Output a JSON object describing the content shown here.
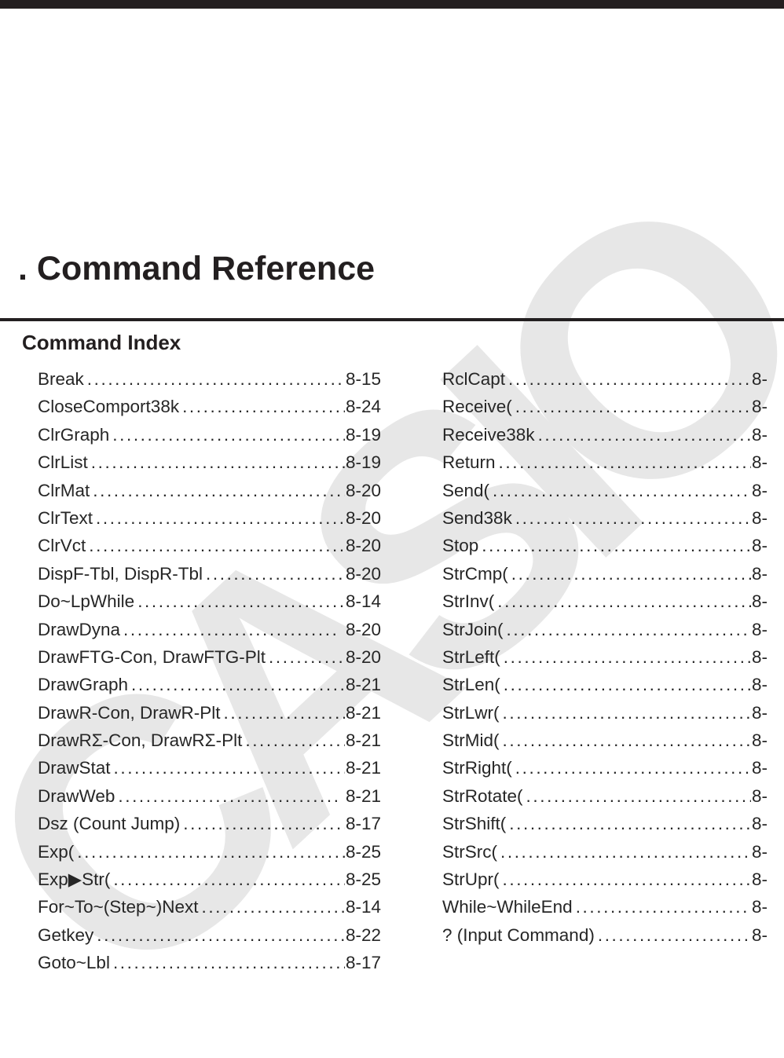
{
  "page": {
    "title": ". Command Reference",
    "section_heading": "Command Index"
  },
  "watermark": {
    "text": "CASIO",
    "color": "#e7e7e7"
  },
  "colors": {
    "top_bar": "#231f20",
    "rule": "#231f20",
    "title_text": "#231f20",
    "entry_text": "#262626"
  },
  "index": {
    "left_column": [
      {
        "name": "Break",
        "page": "8-15"
      },
      {
        "name": "CloseComport38k",
        "page": "8-24"
      },
      {
        "name": "ClrGraph",
        "page": "8-19"
      },
      {
        "name": "ClrList",
        "page": "8-19"
      },
      {
        "name": "ClrMat",
        "page": "8-20"
      },
      {
        "name": "ClrText",
        "page": "8-20"
      },
      {
        "name": "ClrVct",
        "page": "8-20"
      },
      {
        "name": "DispF-Tbl, DispR-Tbl",
        "page": "8-20"
      },
      {
        "name": "Do~LpWhile",
        "page": "8-14"
      },
      {
        "name": "DrawDyna",
        "page": " 8-20"
      },
      {
        "name": "DrawFTG-Con, DrawFTG-Plt",
        "page": "8-20"
      },
      {
        "name": "DrawGraph",
        "page": "8-21"
      },
      {
        "name": "DrawR-Con, DrawR-Plt",
        "page": "8-21"
      },
      {
        "name": "DrawRΣ-Con, DrawRΣ-Plt",
        "page": "8-21"
      },
      {
        "name": "DrawStat",
        "page": "8-21"
      },
      {
        "name": "DrawWeb",
        "page": " 8-21"
      },
      {
        "name": "Dsz (Count Jump)",
        "page": "8-17"
      },
      {
        "name": "Exp(",
        "page": "8-25"
      },
      {
        "name": "Exp▶Str(",
        "page": "8-25"
      },
      {
        "name": "For~To~(Step~)Next",
        "page": "8-14"
      },
      {
        "name": "Getkey",
        "page": "8-22"
      },
      {
        "name": "Goto~Lbl",
        "page": "8-17"
      }
    ],
    "right_column": [
      {
        "name": "RclCapt",
        "page": "8-"
      },
      {
        "name": "Receive(",
        "page": "8-"
      },
      {
        "name": "Receive38k",
        "page": "8-"
      },
      {
        "name": "Return",
        "page": "8-"
      },
      {
        "name": "Send(",
        "page": "8-"
      },
      {
        "name": "Send38k",
        "page": "8-"
      },
      {
        "name": "Stop",
        "page": "8-"
      },
      {
        "name": "StrCmp(",
        "page": "8-"
      },
      {
        "name": "StrInv(",
        "page": "8-"
      },
      {
        "name": "StrJoin(",
        "page": "8-"
      },
      {
        "name": "StrLeft(",
        "page": "8-"
      },
      {
        "name": "StrLen(",
        "page": "8-"
      },
      {
        "name": "StrLwr(",
        "page": "8-"
      },
      {
        "name": "StrMid(",
        "page": "8-"
      },
      {
        "name": "StrRight(",
        "page": "8-"
      },
      {
        "name": "StrRotate(",
        "page": "8-"
      },
      {
        "name": "StrShift(",
        "page": "8-"
      },
      {
        "name": "StrSrc(",
        "page": "8-"
      },
      {
        "name": "StrUpr(",
        "page": "8-"
      },
      {
        "name": "While~WhileEnd",
        "page": "8-"
      },
      {
        "name": "? (Input Command)",
        "page": "8-"
      }
    ]
  }
}
